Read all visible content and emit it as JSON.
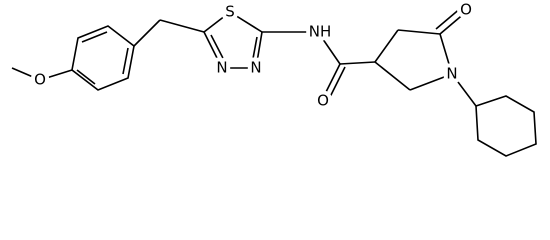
{
  "atoms": [
    {
      "label": "O"
    },
    {
      "label": "S"
    },
    {
      "label": "N"
    },
    {
      "label": "N"
    },
    {
      "label": "NH"
    },
    {
      "label": "O"
    },
    {
      "label": "N"
    },
    {
      "label": "O"
    }
  ]
}
